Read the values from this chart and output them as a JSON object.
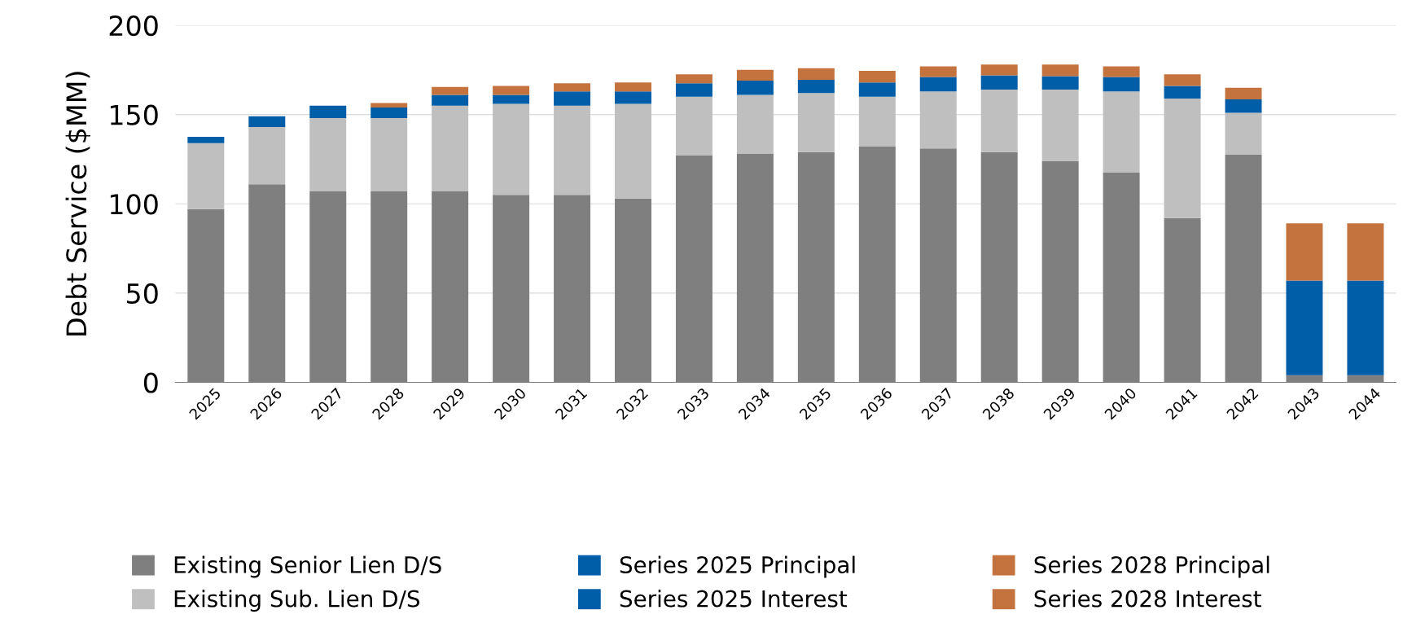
{
  "chart_data": {
    "type": "bar",
    "stacked": true,
    "ylabel": "Debt Service ($MM)",
    "categories": [
      "2025",
      "2026",
      "2027",
      "2028",
      "2029",
      "2030",
      "2031",
      "2032",
      "2033",
      "2034",
      "2035",
      "2036",
      "2037",
      "2038",
      "2039",
      "2040",
      "2041",
      "2042",
      "2043",
      "2044"
    ],
    "series": [
      {
        "name": "Existing Senior Lien D/S",
        "color": "#7f7f7f",
        "values": [
          97,
          111,
          107,
          107,
          107,
          105,
          105,
          103,
          127,
          128,
          129,
          132,
          131,
          129,
          124,
          117.5,
          92,
          127.5,
          4,
          4
        ]
      },
      {
        "name": "Existing Sub. Lien D/S",
        "color": "#bfbfbf",
        "values": [
          37,
          32,
          41,
          41,
          48,
          51,
          50,
          53,
          33,
          33,
          33,
          28,
          32,
          35,
          40,
          45.5,
          67,
          23.5,
          null,
          null
        ]
      },
      {
        "name": "Series 2025 Principal",
        "color": "#005ea8",
        "values": [
          3.5,
          6,
          7,
          6,
          6,
          5,
          8,
          7,
          7.5,
          8,
          7.5,
          8,
          8,
          8,
          7.5,
          8,
          7,
          7.5,
          53,
          53
        ]
      },
      {
        "name": "Series 2025 Interest",
        "color": "#005ea8",
        "values": [
          null,
          null,
          null,
          null,
          null,
          null,
          null,
          null,
          null,
          null,
          null,
          null,
          null,
          null,
          null,
          null,
          null,
          null,
          null,
          null
        ]
      },
      {
        "name": "Series 2028 Principal",
        "color": "#c5733e",
        "values": [
          null,
          null,
          null,
          2.5,
          4.5,
          5,
          4.5,
          5,
          5,
          6,
          6.5,
          6.5,
          6,
          6,
          6.5,
          6,
          6.5,
          6.5,
          32,
          32
        ]
      },
      {
        "name": "Series 2028 Interest",
        "color": "#c5733e",
        "values": [
          null,
          null,
          null,
          null,
          null,
          null,
          null,
          null,
          null,
          null,
          null,
          null,
          null,
          null,
          null,
          null,
          null,
          null,
          null,
          null
        ]
      }
    ],
    "ylim": [
      0,
      200
    ],
    "yticks": [
      0,
      50,
      100,
      150,
      200
    ],
    "grid": "y",
    "legend": "bottom"
  }
}
